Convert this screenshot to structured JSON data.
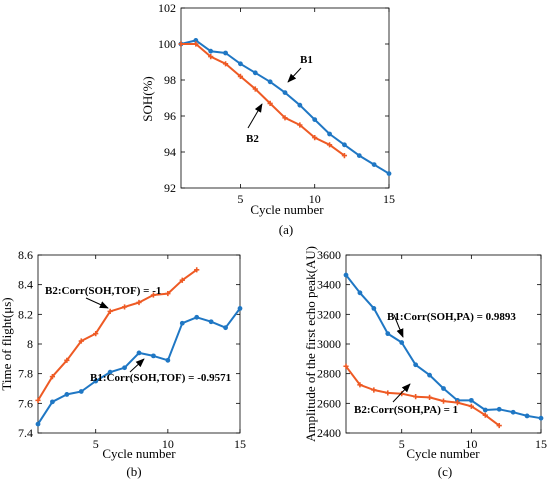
{
  "colors": {
    "blue": "#1f77c4",
    "orange": "#ee5a24"
  },
  "chart_data": [
    {
      "type": "line",
      "panel_label": "(a)",
      "xlabel": "Cycle number",
      "ylabel": "SOH(%)",
      "xlim": [
        1,
        15
      ],
      "ylim": [
        92,
        102
      ],
      "xticks": [
        5,
        10,
        15
      ],
      "yticks": [
        92,
        94,
        96,
        98,
        100,
        102
      ],
      "series": [
        {
          "name": "B1",
          "color": "blue",
          "marker": "dot",
          "x": [
            1,
            2,
            3,
            4,
            5,
            6,
            7,
            8,
            9,
            10,
            11,
            12,
            13,
            14,
            15
          ],
          "y": [
            100.0,
            100.2,
            99.6,
            99.5,
            98.9,
            98.4,
            97.9,
            97.3,
            96.6,
            95.8,
            95.0,
            94.4,
            93.8,
            93.3,
            92.8
          ]
        },
        {
          "name": "B2",
          "color": "orange",
          "marker": "plus",
          "x": [
            1,
            2,
            3,
            4,
            5,
            6,
            7,
            8,
            9,
            10,
            11,
            12
          ],
          "y": [
            100.0,
            100.0,
            99.3,
            98.9,
            98.2,
            97.5,
            96.7,
            95.9,
            95.5,
            94.8,
            94.4,
            93.8
          ]
        }
      ],
      "annotations": [
        {
          "text": "B1",
          "points_to": [
            7.6,
            97.7
          ]
        },
        {
          "text": "B2",
          "points_to": [
            6.6,
            96.9
          ]
        }
      ]
    },
    {
      "type": "line",
      "panel_label": "(b)",
      "xlabel": "Cycle number",
      "ylabel": "Time of flight(μs)",
      "xlim": [
        1,
        15
      ],
      "ylim": [
        7.4,
        8.6
      ],
      "xticks": [
        5,
        10,
        15
      ],
      "yticks": [
        7.4,
        7.6,
        7.8,
        8,
        8.2,
        8.4,
        8.6
      ],
      "series": [
        {
          "name": "B1",
          "color": "blue",
          "marker": "dot",
          "x": [
            1,
            2,
            3,
            4,
            5,
            6,
            7,
            8,
            9,
            10,
            11,
            12,
            13,
            14,
            15
          ],
          "y": [
            7.46,
            7.61,
            7.66,
            7.68,
            7.75,
            7.81,
            7.84,
            7.94,
            7.92,
            7.89,
            8.14,
            8.18,
            8.15,
            8.11,
            8.24
          ]
        },
        {
          "name": "B2",
          "color": "orange",
          "marker": "plus",
          "x": [
            1,
            2,
            3,
            4,
            5,
            6,
            7,
            8,
            9,
            10,
            11,
            12
          ],
          "y": [
            7.62,
            7.78,
            7.89,
            8.02,
            8.07,
            8.22,
            8.25,
            8.28,
            8.33,
            8.34,
            8.43,
            8.5
          ]
        }
      ],
      "annotations": [
        {
          "text": "B2:Corr(SOH,TOF) = -1",
          "points_to": [
            5.3,
            8.13
          ]
        },
        {
          "text": "B1:Corr(SOH,TOF) = -0.9571",
          "points_to": [
            8.1,
            7.92
          ]
        }
      ]
    },
    {
      "type": "line",
      "panel_label": "(c)",
      "xlabel": "Cycle number",
      "ylabel": "Amplitude of the first echo peak(AU)",
      "xlim": [
        1,
        15
      ],
      "ylim": [
        2400,
        3600
      ],
      "xticks": [
        5,
        10,
        15
      ],
      "yticks": [
        2400,
        2600,
        2800,
        3000,
        3200,
        3400,
        3600
      ],
      "series": [
        {
          "name": "B1",
          "color": "blue",
          "marker": "dot",
          "x": [
            1,
            2,
            3,
            4,
            5,
            6,
            7,
            8,
            9,
            10,
            11,
            12,
            13,
            14,
            15
          ],
          "y": [
            3465,
            3345,
            3240,
            3070,
            3010,
            2860,
            2790,
            2700,
            2620,
            2620,
            2555,
            2560,
            2540,
            2515,
            2500
          ]
        },
        {
          "name": "B2",
          "color": "orange",
          "marker": "plus",
          "x": [
            1,
            2,
            3,
            4,
            5,
            6,
            7,
            8,
            9,
            10,
            11,
            12
          ],
          "y": [
            2850,
            2725,
            2690,
            2670,
            2665,
            2645,
            2640,
            2615,
            2605,
            2580,
            2520,
            2450
          ]
        }
      ],
      "annotations": [
        {
          "text": "B1:Corr(SOH,PA) = 0.9893",
          "points_to": [
            5.0,
            3040
          ]
        },
        {
          "text": "B2:Corr(SOH,PA) = 1",
          "points_to": [
            5.6,
            2660
          ]
        }
      ]
    }
  ]
}
